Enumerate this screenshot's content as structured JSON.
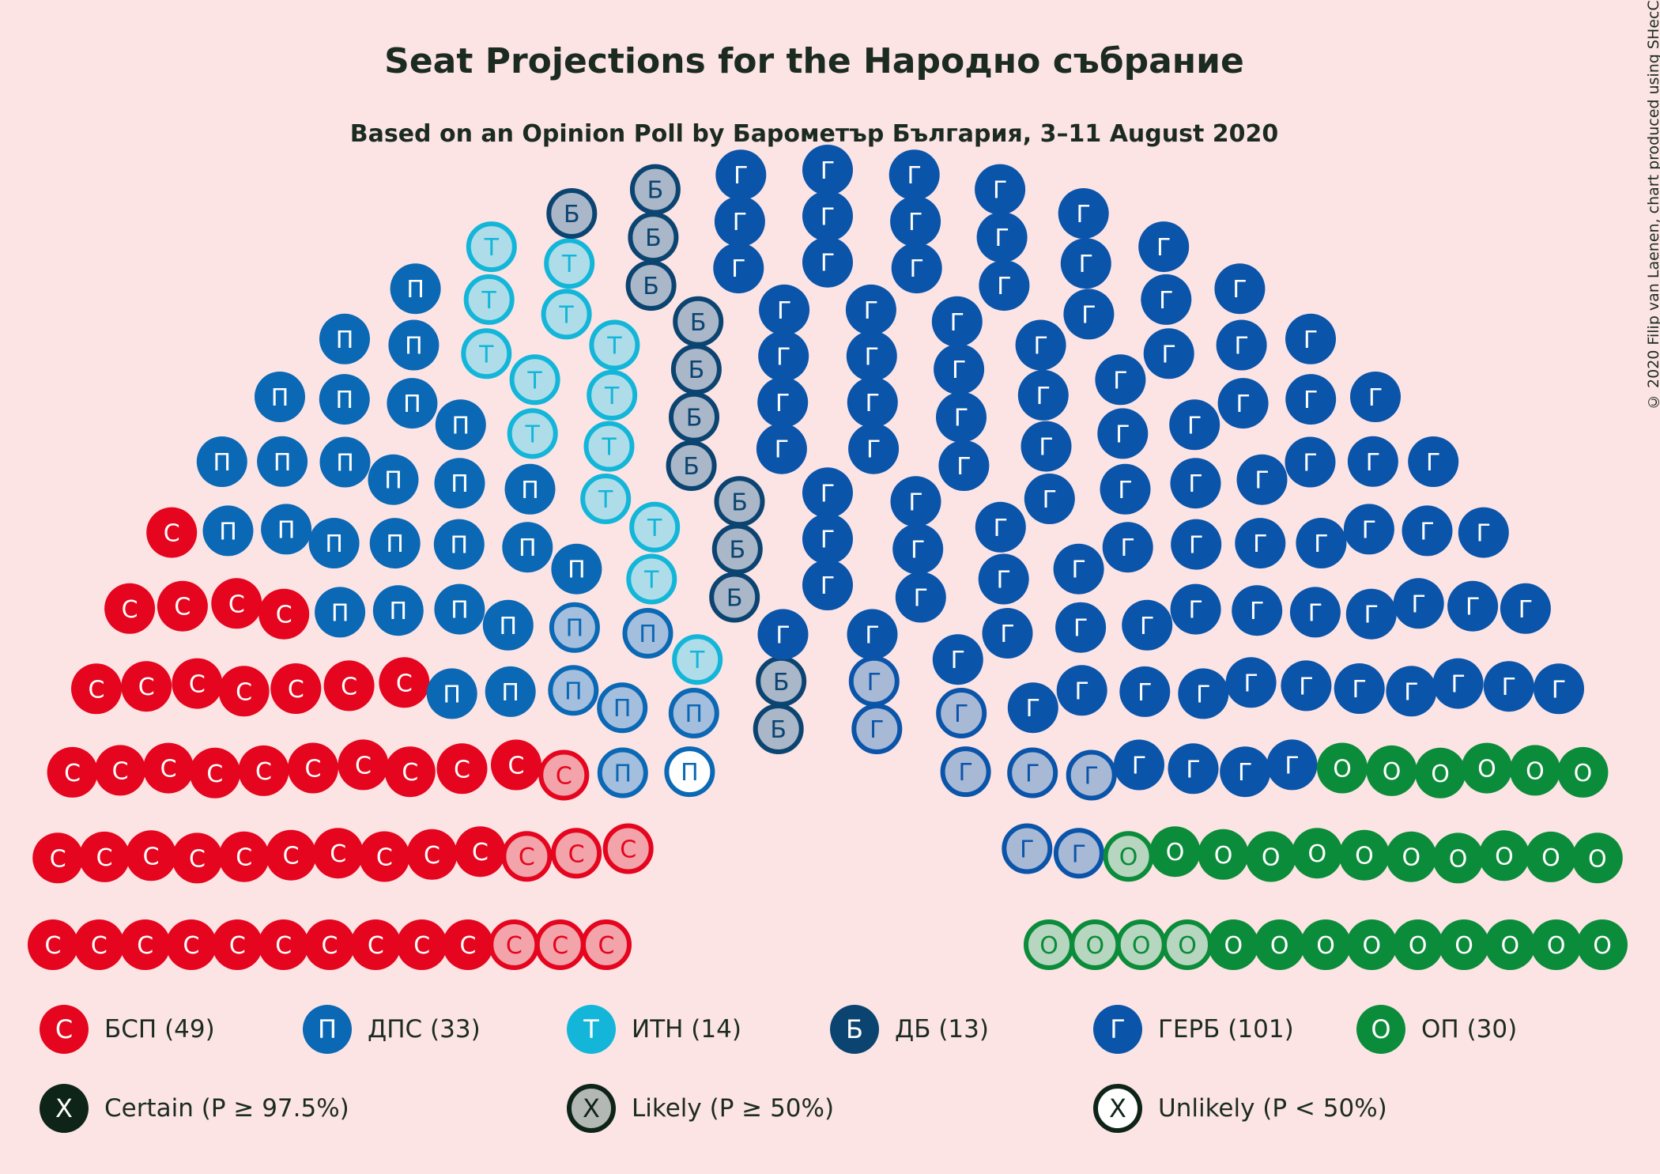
{
  "title": "Seat Projections for the Народно събрание",
  "subtitle": "Based on an Opinion Poll by Барометър България, 3–11 August 2020",
  "credit": "© 2020 Filip van Laenen, chart produced using SHecC",
  "chart_data": {
    "type": "parliament",
    "total_seats": 240,
    "parties": [
      {
        "name": "БСП",
        "seats": 49,
        "letter": "С",
        "color": "#e5051e",
        "light": "#f3a3aa",
        "certain": 42,
        "likely": 7,
        "unlikely": 0,
        "label": "БСП (49)"
      },
      {
        "name": "ДПС",
        "seats": 33,
        "letter": "П",
        "color": "#0a68b5",
        "light": "#a4bede",
        "certain": 26,
        "likely": 6,
        "unlikely": 1,
        "label": "ДПС (33)"
      },
      {
        "name": "ИТН",
        "seats": 14,
        "letter": "Т",
        "color": "#13b6d9",
        "light": "#aedde9",
        "certain": 0,
        "likely": 14,
        "unlikely": 0,
        "label": "ИТН (14)"
      },
      {
        "name": "ДБ",
        "seats": 13,
        "letter": "Б",
        "color": "#0c4471",
        "light": "#a9b7c9",
        "certain": 0,
        "likely": 13,
        "unlikely": 0,
        "label": "ДБ (13)"
      },
      {
        "name": "ГЕРБ",
        "seats": 101,
        "letter": "Г",
        "color": "#0a54aa",
        "light": "#a8b9d6",
        "certain": 93,
        "likely": 8,
        "unlikely": 0,
        "label": "ГЕРБ (101)"
      },
      {
        "name": "ОП",
        "seats": 30,
        "letter": "О",
        "color": "#0b8c3a",
        "light": "#b6d6bf",
        "certain": 25,
        "likely": 5,
        "unlikely": 0,
        "label": "ОП (30)"
      }
    ],
    "certainty_legend": [
      {
        "label": "Certain (P ≥ 97.5%)",
        "letter": "X",
        "style": "certain",
        "color": "#0f2419"
      },
      {
        "label": "Likely (P ≥ 50%)",
        "letter": "X",
        "style": "likely",
        "color": "#0f2419",
        "fill": "#b4b8b5"
      },
      {
        "label": "Unlikely (P < 50%)",
        "letter": "X",
        "style": "unlikely",
        "color": "#0f2419"
      }
    ]
  }
}
